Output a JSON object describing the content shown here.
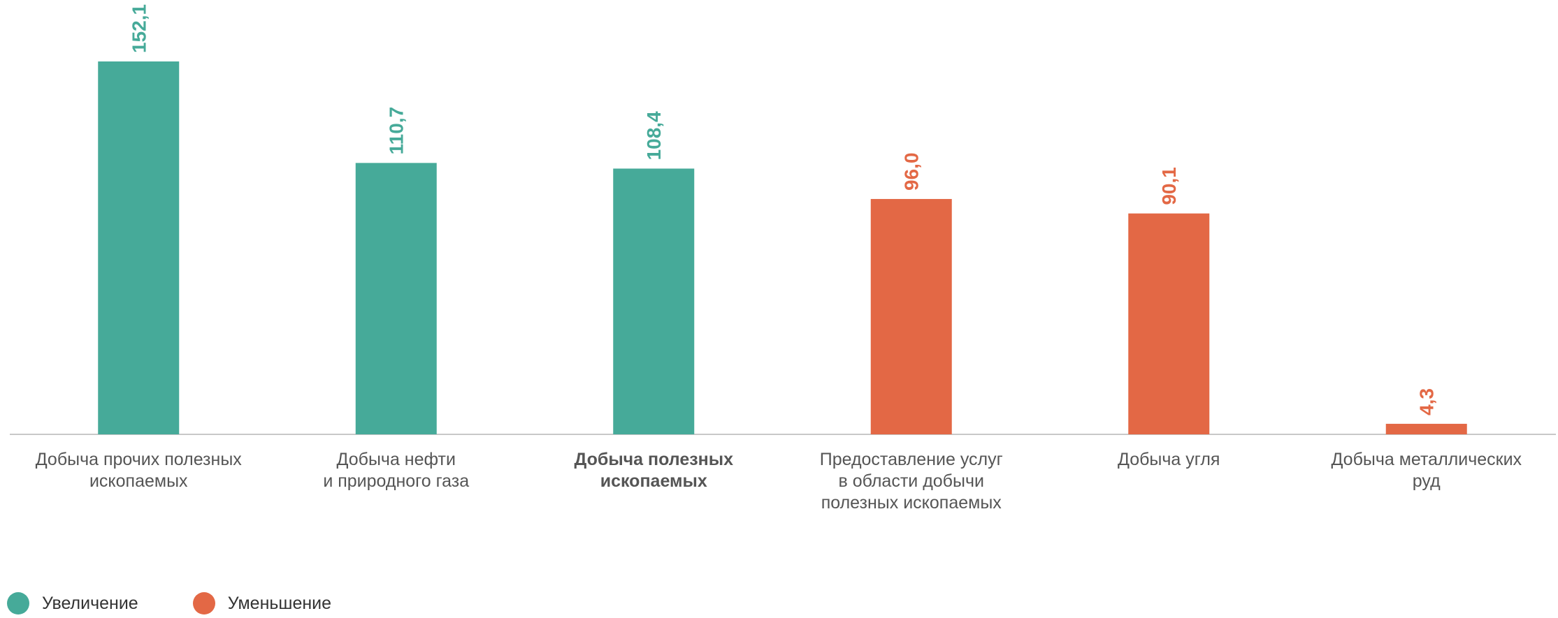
{
  "chart_data": {
    "type": "bar",
    "categories": [
      [
        "Добыча прочих полезных",
        "ископаемых"
      ],
      [
        "Добыча нефти",
        "и природного газа"
      ],
      [
        "Добыча полезных",
        "ископаемых"
      ],
      [
        "Предоставление услуг",
        "в области добычи",
        "полезных ископаемых"
      ],
      [
        "Добыча угля"
      ],
      [
        "Добыча металлических",
        "руд"
      ]
    ],
    "values": [
      152.1,
      110.7,
      108.4,
      96.0,
      90.1,
      4.3
    ],
    "value_labels": [
      "152,1",
      "110,7",
      "108,4",
      "96,0",
      "90,1",
      "4,3"
    ],
    "status": [
      "increase",
      "increase",
      "increase",
      "decrease",
      "decrease",
      "decrease"
    ],
    "bold_categories": [
      2
    ],
    "ylim": [
      0,
      155
    ],
    "grid": false,
    "title": "",
    "xlabel": "",
    "ylabel": "",
    "legend": {
      "placement": "bottom-left",
      "items": [
        {
          "key": "increase",
          "label": "Увеличение",
          "color": "#46aa99"
        },
        {
          "key": "decrease",
          "label": "Уменьшение",
          "color": "#e36845"
        }
      ]
    },
    "colors": {
      "increase": "#46aa99",
      "decrease": "#e36845",
      "axis": "#c8c8c8",
      "category_text": "#555555"
    }
  }
}
